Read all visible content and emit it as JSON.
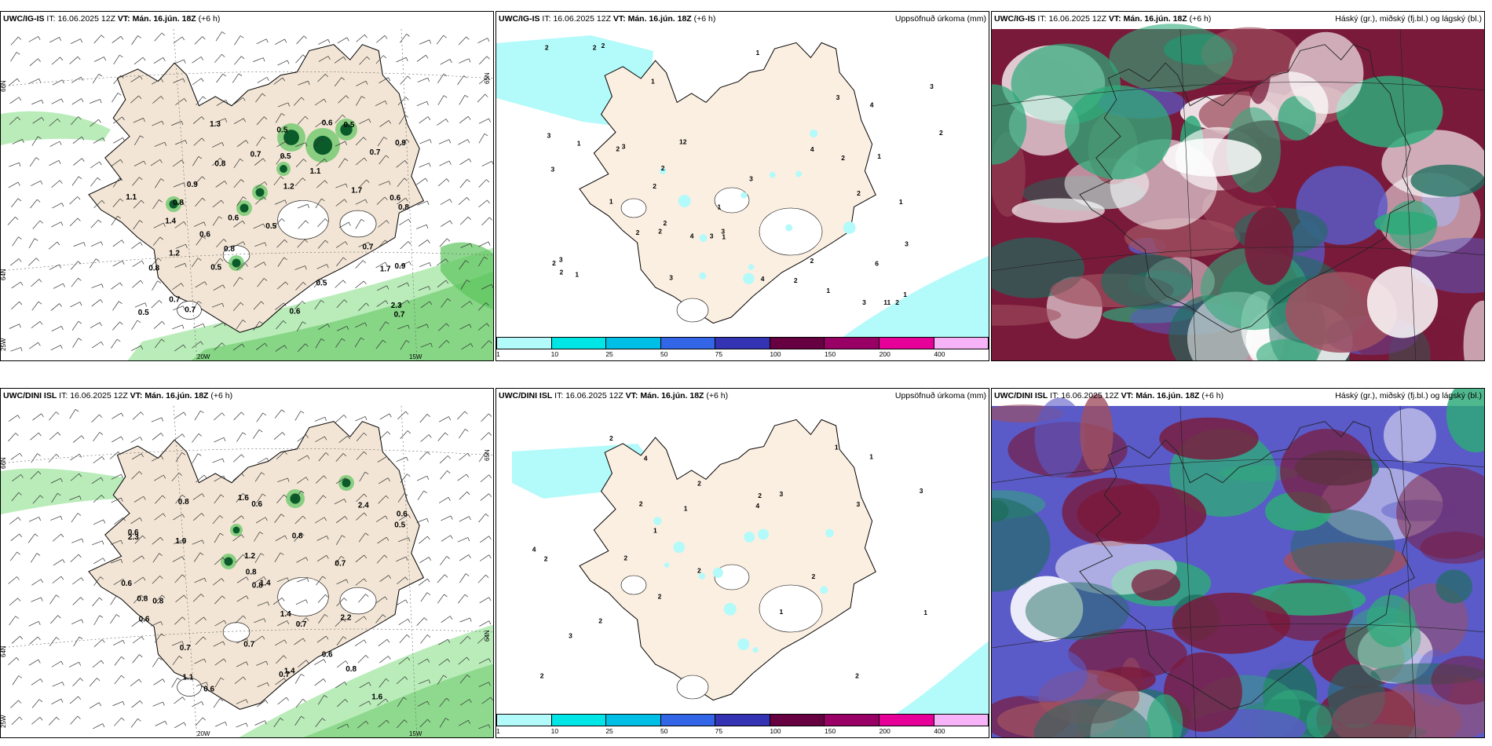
{
  "rows": [
    {
      "model": "UWC/IG-IS",
      "it_label": "IT:",
      "it_value": "16.06.2025 12Z",
      "vt_label": "VT:",
      "vt_value": "Mán. 16.jún. 18Z",
      "lead": "(+6 h)",
      "wind_labels": [
        "0.8",
        "0.6",
        "1.1",
        "0.8",
        "0.6",
        "0.9",
        "0.8",
        "0.6",
        "1.7",
        "0.7",
        "0.9",
        "0.7",
        "1.7",
        "0.5",
        "0.8",
        "0.5",
        "0.6",
        "1.1",
        "1.3",
        "0.7",
        "2.3",
        "0.5",
        "0.7",
        "1.2",
        "1.2",
        "0.5",
        "0.5",
        "0.5",
        "0.6",
        "0.9",
        "0.7",
        "0.7",
        "1.4",
        "0.5",
        "0.8"
      ],
      "precip_labels": [
        "1",
        "2",
        "2",
        "2",
        "2",
        "1",
        "3",
        "2",
        "2",
        "2",
        "1",
        "1",
        "2",
        "3",
        "2",
        "2",
        "3",
        "2",
        "3",
        "12",
        "11",
        "3",
        "2",
        "2",
        "6",
        "4",
        "4",
        "3",
        "4",
        "2",
        "2",
        "4",
        "1",
        "3",
        "3",
        "3",
        "1",
        "2",
        "1",
        "3",
        "3",
        "1",
        "1",
        "1",
        "1",
        "2",
        "3"
      ]
    },
    {
      "model": "UWC/DINI ISL",
      "it_label": "IT:",
      "it_value": "16.06.2025 12Z",
      "vt_label": "VT:",
      "vt_value": "Mán. 16.jún. 18Z",
      "lead": "(+6 h)",
      "wind_labels": [
        "0.6",
        "0.6",
        "0.7",
        "0.6",
        "0.6",
        "1.6",
        "0.8",
        "0.8",
        "1.2",
        "2.4",
        "1.4",
        "2.2",
        "1.6",
        "2.3",
        "1.0",
        "0.7",
        "1.4",
        "0.8",
        "1.4",
        "0.7",
        "0.6",
        "0.8",
        "0.5",
        "0.8",
        "1.1",
        "0.8",
        "0.7",
        "0.8",
        "0.6",
        "0.7",
        "0.6"
      ],
      "precip_labels": [
        "1",
        "1",
        "2",
        "4",
        "3",
        "2",
        "1",
        "3",
        "1",
        "2",
        "2",
        "2",
        "4",
        "2",
        "3",
        "2",
        "2",
        "2",
        "1",
        "1",
        "2",
        "2",
        "4",
        "3",
        "2"
      ]
    }
  ],
  "precip_title": "Uppsöfnuð úrkoma (mm)",
  "cloud_title": "Háský (gr.), miðský (fj.bl.) og lágský (bl.)",
  "colorbar": {
    "colors": [
      "#b3fafa",
      "#00e6e6",
      "#00bfe6",
      "#3366e6",
      "#3333b3",
      "#660040",
      "#990066",
      "#e60099",
      "#f7b3f7"
    ],
    "ticks": [
      "1",
      "10",
      "25",
      "50",
      "75",
      "100",
      "150",
      "200",
      "400"
    ]
  },
  "grid_labels_top": [
    "66N",
    "64N",
    "25W",
    "20W",
    "15W",
    "65N"
  ],
  "grid_labels_bottom": [
    "66N",
    "64N",
    "25W",
    "20W",
    "15W",
    "65N",
    "64N"
  ],
  "colors": {
    "land": "#f2e5d5",
    "land_precip": "#fbefe1",
    "light_green": "#b9ecb9",
    "mid_green": "#5cc45c",
    "dark_green": "#0a5a2a",
    "sea_cyan": "#b3fafa",
    "cloud_maroon": "#7a1a3a",
    "cloud_blue": "#5a5ac8",
    "cloud_green": "#2faa7a",
    "cloud_teal": "#1e6e5e"
  }
}
